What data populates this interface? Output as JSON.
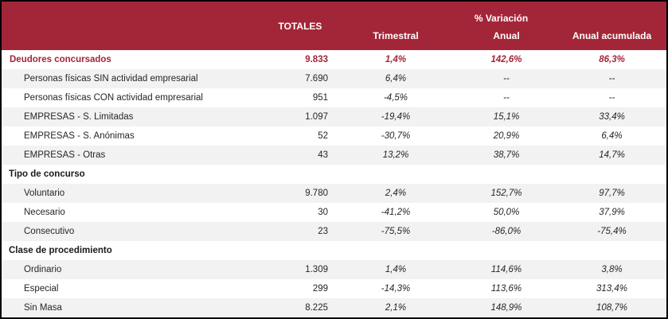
{
  "header": {
    "totales": "TOTALES",
    "variacion": "% Variación",
    "cols": [
      "Trimestral",
      "Anual",
      "Anual acumulada"
    ]
  },
  "colors": {
    "header_bg": "#A32638",
    "accent_text": "#A32638",
    "zebra_row": "#F2F2F2",
    "frame_border": "#000000"
  },
  "chart_data": {
    "type": "table",
    "columns": [
      "",
      "TOTALES",
      "% Variación Trimestral",
      "% Variación Anual",
      "% Variación Anual acumulada"
    ],
    "rows": [
      {
        "label": "Deudores concursados",
        "type": "main",
        "totales": "9.833",
        "trimestral": "1,4%",
        "anual": "142,6%",
        "acumulada": "86,3%"
      },
      {
        "label": "Personas físicas SIN actividad empresarial",
        "type": "sub",
        "totales": "7.690",
        "trimestral": "6,4%",
        "anual": "--",
        "acumulada": "--"
      },
      {
        "label": "Personas físicas CON actividad empresarial",
        "type": "sub",
        "totales": "951",
        "trimestral": "-4,5%",
        "anual": "--",
        "acumulada": "--"
      },
      {
        "label": "EMPRESAS - S. Limitadas",
        "type": "sub",
        "totales": "1.097",
        "trimestral": "-19,4%",
        "anual": "15,1%",
        "acumulada": "33,4%"
      },
      {
        "label": "EMPRESAS - S. Anónimas",
        "type": "sub",
        "totales": "52",
        "trimestral": "-30,7%",
        "anual": "20,9%",
        "acumulada": "6,4%"
      },
      {
        "label": "EMPRESAS - Otras",
        "type": "sub",
        "totales": "43",
        "trimestral": "13,2%",
        "anual": "38,7%",
        "acumulada": "14,7%"
      },
      {
        "label": "Tipo de concurso",
        "type": "section",
        "totales": "",
        "trimestral": "",
        "anual": "",
        "acumulada": ""
      },
      {
        "label": "Voluntario",
        "type": "sub",
        "totales": "9.780",
        "trimestral": "2,4%",
        "anual": "152,7%",
        "acumulada": "97,7%"
      },
      {
        "label": "Necesario",
        "type": "sub",
        "totales": "30",
        "trimestral": "-41,2%",
        "anual": "50,0%",
        "acumulada": "37,9%"
      },
      {
        "label": "Consecutivo",
        "type": "sub",
        "totales": "23",
        "trimestral": "-75,5%",
        "anual": "-86,0%",
        "acumulada": "-75,4%"
      },
      {
        "label": "Clase de procedimiento",
        "type": "section",
        "totales": "",
        "trimestral": "",
        "anual": "",
        "acumulada": ""
      },
      {
        "label": "Ordinario",
        "type": "sub",
        "totales": "1.309",
        "trimestral": "1,4%",
        "anual": "114,6%",
        "acumulada": "3,8%"
      },
      {
        "label": "Especial",
        "type": "sub",
        "totales": "299",
        "trimestral": "-14,3%",
        "anual": "113,6%",
        "acumulada": "313,4%"
      },
      {
        "label": "Sin Masa",
        "type": "sub",
        "totales": "8.225",
        "trimestral": "2,1%",
        "anual": "148,9%",
        "acumulada": "108,7%"
      }
    ]
  }
}
